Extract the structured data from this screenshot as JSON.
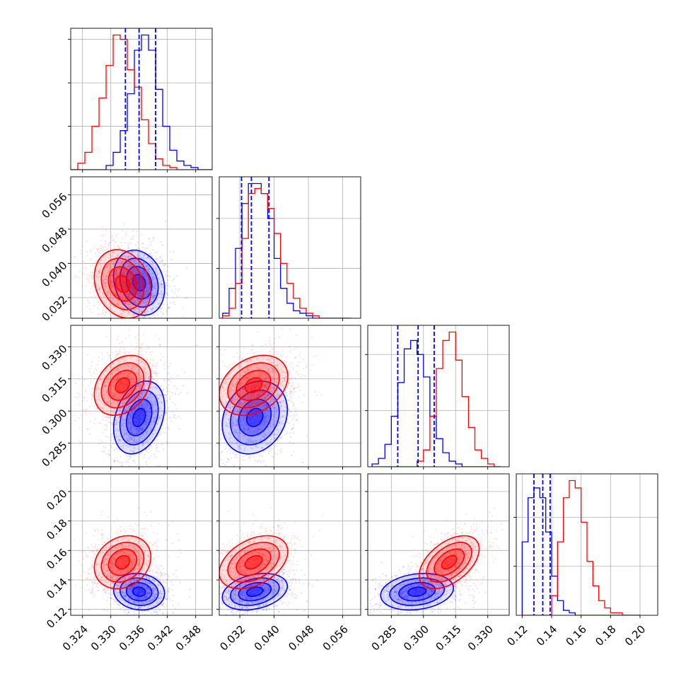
{
  "chart_data": {
    "type": "corner",
    "title": "",
    "grid": true,
    "parameters": [
      {
        "range": [
          0.3215,
          0.3515
        ],
        "ticks": [
          0.324,
          0.33,
          0.336,
          0.342,
          0.348
        ],
        "tick_labels": [
          "0.324",
          "0.330",
          "0.336",
          "0.342",
          "0.348"
        ]
      },
      {
        "range": [
          0.0272,
          0.0602
        ],
        "ticks": [
          0.032,
          0.04,
          0.048,
          0.056
        ],
        "tick_labels": [
          "0.032",
          "0.040",
          "0.048",
          "0.056"
        ]
      },
      {
        "range": [
          0.274,
          0.34
        ],
        "ticks": [
          0.285,
          0.3,
          0.315,
          0.33
        ],
        "tick_labels": [
          "0.285",
          "0.300",
          "0.315",
          "0.330"
        ]
      },
      {
        "range": [
          0.116,
          0.212
        ],
        "ticks": [
          0.12,
          0.14,
          0.16,
          0.18,
          0.2
        ],
        "tick_labels": [
          "0.12",
          "0.14",
          "0.16",
          "0.18",
          "0.20"
        ]
      }
    ],
    "series": [
      {
        "color": "#0000ff",
        "mean": [
          0.336,
          0.0355,
          0.297,
          0.132
        ],
        "std": [
          0.0027,
          0.0038,
          0.0085,
          0.0062
        ],
        "quantiles": [
          [
            0.3331,
            0.336,
            0.3395
          ],
          [
            0.0324,
            0.0347,
            0.0388
          ],
          [
            0.288,
            0.2975,
            0.305
          ],
          [
            0.128,
            0.134,
            0.139
          ]
        ],
        "correlations": {
          "0-1": -0.2,
          "0-2": 0.3,
          "0-3": -0.1,
          "1-2": 0.2,
          "1-3": 0.3,
          "2-3": 0.2
        },
        "histograms": [
          {
            "edges": [
              0.3215,
              0.323,
              0.3245,
              0.326,
              0.3275,
              0.329,
              0.3305,
              0.332,
              0.3335,
              0.335,
              0.3365,
              0.338,
              0.3395,
              0.341,
              0.3425,
              0.344,
              0.3455,
              0.347,
              0.3485,
              0.35,
              0.3515
            ],
            "counts": [
              0,
              0,
              0,
              0,
              0,
              2,
              8,
              18,
              35,
              55,
              62,
              55,
              37,
              20,
              9,
              4,
              2,
              1,
              0,
              0
            ]
          },
          {
            "edges": [
              0.028,
              0.0295,
              0.031,
              0.0325,
              0.034,
              0.0355,
              0.037,
              0.0385,
              0.04,
              0.0415,
              0.043,
              0.0445,
              0.046,
              0.0475,
              0.049,
              0.0505,
              0.052,
              0.0535,
              0.055,
              0.0565,
              0.058
            ],
            "counts": [
              2,
              12,
              28,
              46,
              54,
              54,
              50,
              40,
              24,
              12,
              6,
              3,
              2,
              1,
              0,
              0,
              0,
              0,
              0,
              0
            ]
          },
          {
            "edges": [
              0.276,
              0.279,
              0.282,
              0.285,
              0.288,
              0.291,
              0.294,
              0.297,
              0.3,
              0.303,
              0.306,
              0.309,
              0.312,
              0.315,
              0.318,
              0.321,
              0.324,
              0.327,
              0.33,
              0.333,
              0.336
            ],
            "counts": [
              1,
              3,
              8,
              18,
              30,
              42,
              45,
              40,
              32,
              18,
              10,
              5,
              2,
              1,
              0,
              0,
              0,
              0,
              0,
              0
            ]
          },
          {
            "edges": [
              0.12,
              0.124,
              0.128,
              0.132,
              0.136,
              0.14,
              0.144,
              0.148,
              0.152,
              0.156,
              0.16,
              0.164,
              0.168,
              0.172,
              0.176,
              0.18,
              0.184,
              0.188,
              0.192,
              0.196,
              0.2
            ],
            "counts": [
              30,
              48,
              52,
              48,
              34,
              16,
              6,
              2,
              1,
              0,
              0,
              0,
              0,
              0,
              0,
              0,
              0,
              0,
              0,
              0
            ]
          }
        ]
      },
      {
        "color": "#ff0000",
        "mean": [
          0.3325,
          0.0352,
          0.312,
          0.152
        ],
        "std": [
          0.003,
          0.004,
          0.007,
          0.009
        ],
        "quantiles": [
          [
            0.3295,
            0.3325,
            0.3355
          ],
          [
            0.0318,
            0.0352,
            0.0392
          ],
          [
            0.305,
            0.312,
            0.319
          ],
          [
            0.143,
            0.152,
            0.161
          ]
        ],
        "correlations": {
          "0-1": -0.2,
          "0-2": 0.3,
          "0-3": 0.2,
          "1-2": 0.3,
          "1-3": 0.4,
          "2-3": 0.5
        },
        "histograms": [
          {
            "edges": [
              0.3215,
              0.323,
              0.3245,
              0.326,
              0.3275,
              0.329,
              0.3305,
              0.332,
              0.3335,
              0.335,
              0.3365,
              0.338,
              0.3395,
              0.341,
              0.3425,
              0.344,
              0.3455,
              0.347,
              0.3485,
              0.35,
              0.3515
            ],
            "counts": [
              0,
              3,
              8,
              20,
              33,
              48,
              62,
              60,
              46,
              38,
              23,
              12,
              5,
              2,
              1,
              0,
              0,
              0,
              0,
              0
            ]
          },
          {
            "edges": [
              0.028,
              0.0295,
              0.031,
              0.0325,
              0.034,
              0.0355,
              0.037,
              0.0385,
              0.04,
              0.0415,
              0.043,
              0.0445,
              0.046,
              0.0475,
              0.049,
              0.0505,
              0.052,
              0.0535,
              0.055,
              0.0565,
              0.058
            ],
            "counts": [
              1,
              4,
              14,
              32,
              50,
              52,
              50,
              44,
              34,
              22,
              14,
              8,
              4,
              2,
              1,
              0,
              0,
              0,
              0,
              0
            ]
          },
          {
            "edges": [
              0.276,
              0.279,
              0.282,
              0.285,
              0.288,
              0.291,
              0.294,
              0.297,
              0.3,
              0.303,
              0.306,
              0.309,
              0.312,
              0.315,
              0.318,
              0.321,
              0.324,
              0.327,
              0.33,
              0.333,
              0.336
            ],
            "counts": [
              0,
              0,
              0,
              0,
              0,
              0,
              0,
              2,
              6,
              18,
              35,
              45,
              48,
              38,
              25,
              14,
              6,
              3,
              1,
              0
            ]
          },
          {
            "edges": [
              0.12,
              0.124,
              0.128,
              0.132,
              0.136,
              0.14,
              0.144,
              0.148,
              0.152,
              0.156,
              0.16,
              0.164,
              0.168,
              0.172,
              0.176,
              0.18,
              0.184,
              0.188,
              0.192,
              0.196,
              0.2
            ],
            "counts": [
              0,
              0,
              0,
              0,
              0,
              8,
              30,
              48,
              55,
              52,
              38,
              22,
              12,
              6,
              3,
              1,
              1,
              0,
              0,
              0
            ]
          }
        ]
      }
    ]
  }
}
